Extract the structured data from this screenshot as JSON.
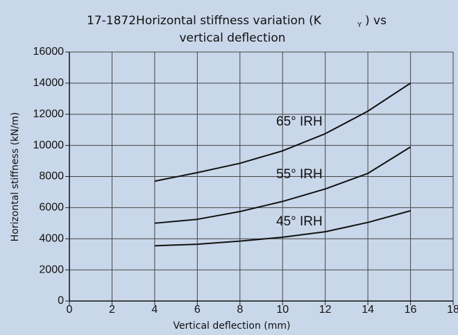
{
  "chart_data": {
    "type": "line",
    "title": [
      "17-1872Horizontal stiffness variation (K",
      "Y",
      ") vs",
      "vertical deflection"
    ],
    "x_label": "Vertical deflection (mm)",
    "y_label": "Horizontal stiffness (kN/m)",
    "x": [
      4,
      6,
      8,
      10,
      12,
      14,
      16
    ],
    "series": [
      {
        "name": "65° IRH",
        "color": "#111111",
        "values": [
          7700,
          8250,
          8850,
          9650,
          10750,
          12200,
          14000
        ]
      },
      {
        "name": "55° IRH",
        "color": "#111111",
        "values": [
          5000,
          5250,
          5750,
          6400,
          7200,
          8200,
          9900
        ]
      },
      {
        "name": "45° IRH",
        "color": "#111111",
        "values": [
          3550,
          3650,
          3850,
          4100,
          4450,
          5050,
          5800
        ]
      }
    ],
    "xlim": [
      0,
      18
    ],
    "xticks": [
      0,
      2,
      4,
      6,
      8,
      10,
      12,
      14,
      16,
      18
    ],
    "ylim": [
      0,
      16000
    ],
    "yticks": [
      0,
      2000,
      4000,
      6000,
      8000,
      10000,
      12000,
      14000,
      16000
    ],
    "grid": true
  }
}
